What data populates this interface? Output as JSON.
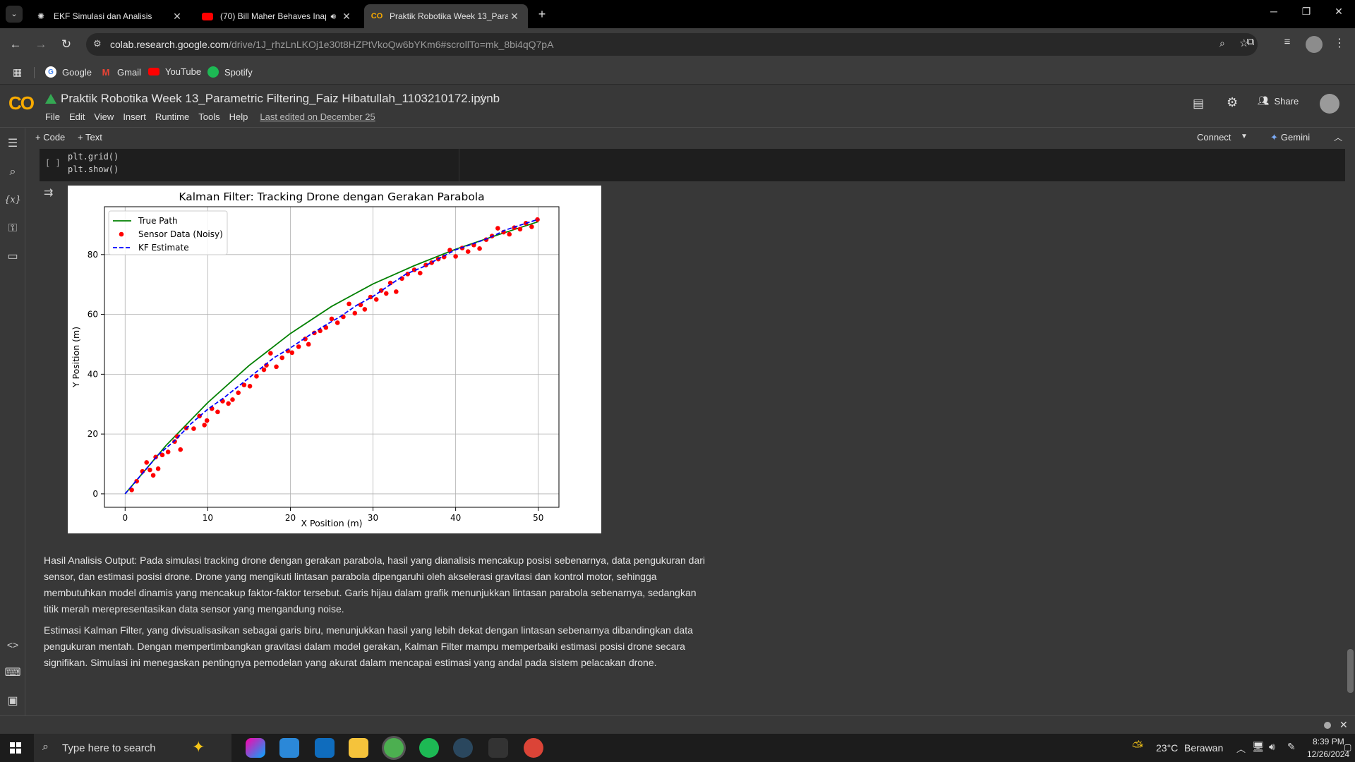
{
  "browser": {
    "tabs": [
      {
        "title": "EKF Simulasi dan Analisis",
        "active": false
      },
      {
        "title": "(70) Bill Maher Behaves Inap",
        "active": false
      },
      {
        "title": "Praktik Robotika Week 13_Parar",
        "active": true
      }
    ],
    "url_host": "colab.research.google.com",
    "url_path": "/drive/1J_rhzLnLKOj1e30t8HZPtVkoQw6bYKm6#scrollTo=mk_8bi4qQ7pA",
    "bookmarks": [
      "Google",
      "Gmail",
      "YouTube",
      "Spotify"
    ]
  },
  "colab": {
    "logo": "CO",
    "notebook_title": "Praktik Robotika Week 13_Parametric Filtering_Faiz Hibatullah_1103210172.ipynb",
    "menu": [
      "File",
      "Edit",
      "View",
      "Insert",
      "Runtime",
      "Tools",
      "Help"
    ],
    "last_edited": "Last edited on December 25",
    "share_label": "Share",
    "add_code": "+ Code",
    "add_text": "+ Text",
    "connect_label": "Connect",
    "gemini_label": "Gemini"
  },
  "cell": {
    "run_indicator": "[ ]",
    "code_lines": [
      "plt.grid()",
      "plt.show()"
    ]
  },
  "chart_data": {
    "type": "line",
    "title": "Kalman Filter: Tracking Drone dengan Gerakan Parabola",
    "xlabel": "X Position (m)",
    "ylabel": "Y Position (m)",
    "xlim": [
      -2.5,
      52.5
    ],
    "ylim": [
      -4.5,
      96
    ],
    "xticks": [
      0,
      10,
      20,
      30,
      40,
      50
    ],
    "yticks": [
      0,
      20,
      40,
      60,
      80
    ],
    "grid": true,
    "legend_position": "top-left",
    "series": [
      {
        "name": "True Path",
        "style": "solid",
        "color": "#008000",
        "x": [
          0,
          5,
          10,
          15,
          20,
          25,
          30,
          35,
          40,
          45,
          50
        ],
        "y": [
          0,
          16.3,
          30.5,
          42.9,
          53.6,
          62.7,
          70.2,
          76.3,
          81.8,
          86.5,
          91.0
        ]
      },
      {
        "name": "Sensor Data (Noisy)",
        "style": "markers",
        "color": "#ff0000",
        "x": [
          0.8,
          1.4,
          2.1,
          2.6,
          3.0,
          3.4,
          3.7,
          4.0,
          4.5,
          5.2,
          6.0,
          6.3,
          6.7,
          7.4,
          8.3,
          9.0,
          9.6,
          9.9,
          10.5,
          11.2,
          11.8,
          12.5,
          13.0,
          13.7,
          14.4,
          15.1,
          15.9,
          16.8,
          17.1,
          17.6,
          18.3,
          19.0,
          19.7,
          20.2,
          21.0,
          21.8,
          22.2,
          22.9,
          23.6,
          24.3,
          25.0,
          25.7,
          26.4,
          27.1,
          27.8,
          28.5,
          29.0,
          29.7,
          30.4,
          31.0,
          31.6,
          32.1,
          32.8,
          33.5,
          34.2,
          35.0,
          35.7,
          36.4,
          37.1,
          37.9,
          38.6,
          39.3,
          40.0,
          40.8,
          41.5,
          42.2,
          42.9,
          43.7,
          44.4,
          45.1,
          45.8,
          46.5,
          47.1,
          47.8,
          48.5,
          49.2,
          49.9
        ],
        "y": [
          1.3,
          4.2,
          7.5,
          10.5,
          8.0,
          6.2,
          12.3,
          8.4,
          13.0,
          14.0,
          17.5,
          19.2,
          14.8,
          22.0,
          21.8,
          26.0,
          23.0,
          24.5,
          28.5,
          27.4,
          31.0,
          30.2,
          31.5,
          33.8,
          36.4,
          36.0,
          39.3,
          41.5,
          43.0,
          47.0,
          42.5,
          45.5,
          47.8,
          47.2,
          49.2,
          51.8,
          50.0,
          53.8,
          54.5,
          55.6,
          58.5,
          57.2,
          59.2,
          63.5,
          60.4,
          63.2,
          61.7,
          65.8,
          65.0,
          68.0,
          67.0,
          70.5,
          67.6,
          72.0,
          73.5,
          74.9,
          73.8,
          76.5,
          77.3,
          78.5,
          79.2,
          81.5,
          79.4,
          82.2,
          81.0,
          83.2,
          82.0,
          85.0,
          86.2,
          88.8,
          87.5,
          86.8,
          89.0,
          88.5,
          90.5,
          89.3,
          91.7
        ]
      },
      {
        "name": "KF Estimate",
        "style": "dashed",
        "color": "#0000ff",
        "x": [
          0,
          2,
          4,
          6,
          8,
          10,
          12,
          14,
          16,
          18,
          20,
          22,
          24,
          26,
          28,
          30,
          32,
          34,
          36,
          38,
          40,
          42,
          44,
          46,
          48,
          50
        ],
        "y": [
          0,
          6.5,
          13.0,
          17.8,
          23.5,
          28.3,
          32.2,
          36.6,
          41.0,
          45.5,
          48.8,
          52.5,
          56.0,
          59.2,
          63.0,
          66.0,
          69.8,
          73.5,
          75.8,
          78.7,
          81.6,
          83.5,
          85.5,
          88.2,
          90.0,
          91.8
        ]
      }
    ]
  },
  "analysis": {
    "p1": "Hasil Analisis Output: Pada simulasi tracking drone dengan gerakan parabola, hasil yang dianalisis mencakup posisi sebenarnya, data pengukuran dari sensor, dan estimasi posisi drone. Drone yang mengikuti lintasan parabola dipengaruhi oleh akselerasi gravitasi dan kontrol motor, sehingga membutuhkan model dinamis yang mencakup faktor-faktor tersebut. Garis hijau dalam grafik menunjukkan lintasan parabola sebenarnya, sedangkan titik merah merepresentasikan data sensor yang mengandung noise.",
    "p2": "Estimasi Kalman Filter, yang divisualisasikan sebagai garis biru, menunjukkan hasil yang lebih dekat dengan lintasan sebenarnya dibandingkan data pengukuran mentah. Dengan mempertimbangkan gravitasi dalam model gerakan, Kalman Filter mampu memperbaiki estimasi posisi drone secara signifikan. Simulasi ini menegaskan pentingnya pemodelan yang akurat dalam mencapai estimasi yang andal pada sistem pelacakan drone."
  },
  "taskbar": {
    "search_placeholder": "Type here to search",
    "weather_temp": "23°C",
    "weather_text": "Berawan",
    "time": "8:39 PM",
    "date": "12/26/2024"
  },
  "colors": {
    "accent_orange": "#f9ab00",
    "youtube_red": "#ff0000",
    "spotify_green": "#1db954"
  }
}
